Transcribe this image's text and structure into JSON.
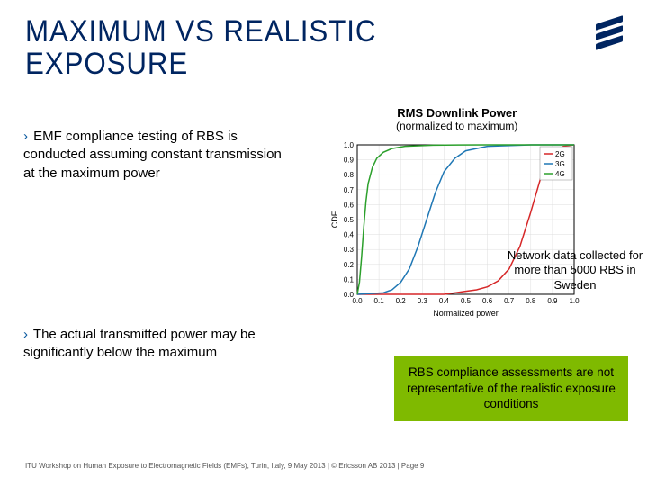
{
  "title_line1": "MAXIMUM VS REALISTIC",
  "title_line2": "EXPOSURE",
  "bullets": [
    "EMF compliance testing of RBS is conducted assuming constant transmission at the maximum power",
    "The actual transmitted power may be significantly below the maximum"
  ],
  "chart": {
    "title_main": "RMS Downlink Power",
    "title_sub": "(normalized to maximum)",
    "type": "line",
    "xlabel": "Normalized power",
    "ylabel": "CDF",
    "xlim": [
      0,
      1
    ],
    "ylim": [
      0,
      1
    ],
    "xtick_step": 0.1,
    "ytick_step": 0.1,
    "background_color": "#ffffff",
    "grid_color": "#dddddd",
    "axis_color": "#000000",
    "label_fontsize": 9,
    "tick_fontsize": 8,
    "line_width": 1.5,
    "legend": {
      "position": "top-right",
      "items": [
        "2G",
        "3G",
        "4G"
      ],
      "colors": [
        "#d62728",
        "#1f77b4",
        "#2ca02c"
      ]
    },
    "series": [
      {
        "name": "2G",
        "color": "#d62728",
        "x": [
          0,
          0.4,
          0.45,
          0.5,
          0.55,
          0.6,
          0.65,
          0.7,
          0.75,
          0.8,
          0.85,
          0.9,
          0.95,
          1.0
        ],
        "y": [
          0,
          0.0,
          0.01,
          0.02,
          0.03,
          0.05,
          0.09,
          0.17,
          0.32,
          0.55,
          0.8,
          0.94,
          0.99,
          1.0
        ]
      },
      {
        "name": "3G",
        "color": "#1f77b4",
        "x": [
          0,
          0.12,
          0.16,
          0.2,
          0.24,
          0.28,
          0.32,
          0.36,
          0.4,
          0.45,
          0.5,
          0.6,
          0.8,
          1.0
        ],
        "y": [
          0,
          0.01,
          0.03,
          0.08,
          0.17,
          0.32,
          0.5,
          0.68,
          0.82,
          0.91,
          0.96,
          0.99,
          1.0,
          1.0
        ]
      },
      {
        "name": "4G",
        "color": "#2ca02c",
        "x": [
          0,
          0.01,
          0.02,
          0.03,
          0.04,
          0.05,
          0.07,
          0.09,
          0.12,
          0.16,
          0.22,
          0.35,
          0.6,
          1.0
        ],
        "y": [
          0,
          0.08,
          0.25,
          0.45,
          0.62,
          0.74,
          0.85,
          0.91,
          0.95,
          0.975,
          0.99,
          0.998,
          1.0,
          1.0
        ]
      }
    ]
  },
  "note_text": "Network data collected for more than 5000 RBS in Sweden",
  "callout_text": "RBS compliance assessments are not representative of the realistic exposure conditions",
  "footer_text": "ITU Workshop on Human Exposure to Electromagnetic Fields (EMFs), Turin, Italy, 9 May 2013  |  © Ericsson AB 2013  |  Page 9"
}
